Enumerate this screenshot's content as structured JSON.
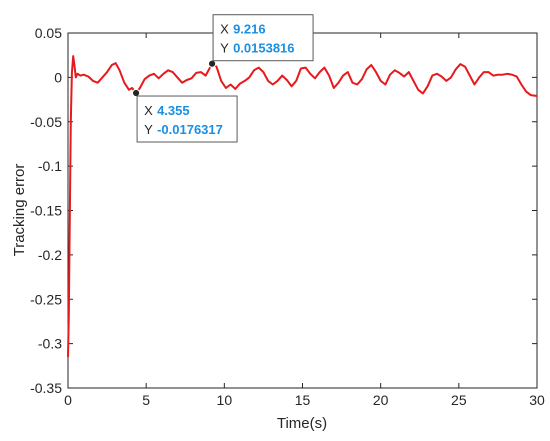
{
  "chart_data": {
    "type": "line",
    "xlabel": "Time(s)",
    "ylabel": "Tracking error",
    "xlim": [
      0,
      30
    ],
    "ylim": [
      -0.35,
      0.05
    ],
    "xticks": [
      0,
      5,
      10,
      15,
      20,
      25,
      30
    ],
    "xtick_labels": [
      "0",
      "5",
      "10",
      "15",
      "20",
      "25",
      "30"
    ],
    "yticks": [
      0.05,
      0,
      -0.05,
      -0.1,
      -0.15,
      -0.2,
      -0.25,
      -0.3,
      -0.35
    ],
    "ytick_labels": [
      "0.05",
      "0",
      "-0.05",
      "-0.1",
      "-0.15",
      "-0.2",
      "-0.25",
      "-0.3",
      "-0.35"
    ],
    "grid": false,
    "line_color": "#e8191c",
    "series": [
      {
        "x": [
          0,
          0.05,
          0.1,
          0.18,
          0.25,
          0.33,
          0.4,
          0.5,
          0.6,
          0.8,
          1.0,
          1.3,
          1.6,
          1.9,
          2.2,
          2.5,
          2.8,
          3.05,
          3.3,
          3.6,
          3.9,
          4.1,
          4.355,
          4.6,
          4.9,
          5.2,
          5.5,
          5.8,
          6.1,
          6.4,
          6.7,
          7.0,
          7.3,
          7.6,
          7.9,
          8.2,
          8.5,
          8.8,
          9.216,
          9.5,
          9.8,
          10.1,
          10.4,
          10.7,
          11.0,
          11.3,
          11.6,
          11.9,
          12.2,
          12.5,
          12.8,
          13.1,
          13.4,
          13.7,
          14.0,
          14.3,
          14.6,
          14.9,
          15.2,
          15.5,
          15.8,
          16.1,
          16.4,
          16.7,
          17.0,
          17.3,
          17.6,
          17.9,
          18.2,
          18.5,
          18.8,
          19.1,
          19.4,
          19.7,
          20.0,
          20.3,
          20.6,
          20.9,
          21.2,
          21.5,
          21.8,
          22.1,
          22.4,
          22.7,
          23.0,
          23.3,
          23.6,
          23.9,
          24.2,
          24.5,
          24.8,
          25.1,
          25.4,
          25.7,
          26.0,
          26.3,
          26.6,
          26.9,
          27.2,
          27.5,
          27.8,
          28.1,
          28.4,
          28.7,
          29.0,
          29.3,
          29.6,
          30.0
        ],
        "y": [
          -0.315,
          -0.27,
          -0.18,
          -0.05,
          0.005,
          0.024,
          0.015,
          0.0,
          0.004,
          0.002,
          0.003,
          0.001,
          -0.004,
          -0.006,
          0.0,
          0.006,
          0.014,
          0.016,
          0.008,
          -0.006,
          -0.014,
          -0.012,
          -0.0176,
          -0.012,
          -0.002,
          0.002,
          0.004,
          -0.001,
          0.004,
          0.008,
          0.006,
          0.0,
          -0.006,
          -0.003,
          -0.001,
          0.005,
          0.006,
          0.002,
          0.0154,
          0.012,
          -0.004,
          -0.012,
          -0.008,
          -0.013,
          -0.007,
          -0.004,
          0.0,
          0.008,
          0.011,
          0.006,
          -0.004,
          -0.008,
          -0.004,
          0.002,
          -0.003,
          -0.01,
          -0.004,
          0.01,
          0.011,
          0.004,
          -0.001,
          0.006,
          0.011,
          0.002,
          -0.012,
          -0.006,
          0.002,
          0.006,
          -0.006,
          -0.008,
          -0.002,
          0.009,
          0.014,
          0.006,
          -0.004,
          -0.008,
          0.003,
          0.008,
          0.005,
          0.001,
          0.006,
          -0.004,
          -0.014,
          -0.018,
          -0.01,
          0.002,
          0.004,
          0.001,
          -0.004,
          0.0,
          0.009,
          0.015,
          0.012,
          0.002,
          -0.008,
          0.0,
          0.006,
          0.006,
          0.002,
          0.003,
          0.003,
          0.004,
          0.003,
          0.001,
          -0.008,
          -0.016,
          -0.02,
          -0.021
        ]
      }
    ],
    "datatips": [
      {
        "x_label": "X",
        "x_value": "4.355",
        "y_label": "Y",
        "y_value": "-0.0176317",
        "x": 4.355,
        "y": -0.0176317
      },
      {
        "x_label": "X",
        "x_value": "9.216",
        "y_label": "Y",
        "y_value": "0.0153816",
        "x": 9.216,
        "y": 0.0153816
      }
    ]
  }
}
